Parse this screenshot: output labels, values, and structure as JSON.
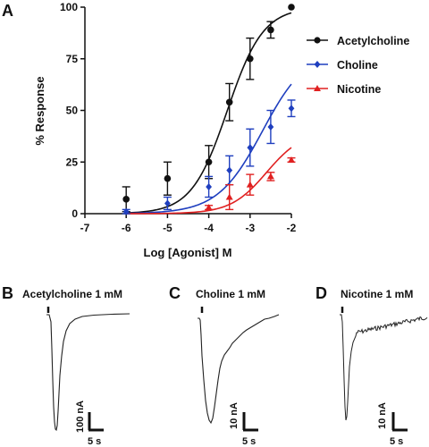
{
  "chart_data": [
    {
      "type": "line",
      "panel_label": "A",
      "xlabel": "Log [Agonist] M",
      "ylabel": "% Response",
      "xlim": [
        -7,
        -2
      ],
      "ylim": [
        0,
        100
      ],
      "x_ticks": [
        "-7",
        "-6",
        "-5",
        "-4",
        "-3",
        "-2"
      ],
      "y_ticks": [
        "0",
        "25",
        "50",
        "75",
        "100"
      ],
      "grid": false,
      "legend_position": "top-right",
      "series": [
        {
          "name": "Acetylcholine",
          "color": "#111111",
          "marker": "circle",
          "x": [
            -6,
            -5,
            -4,
            -3.5,
            -3,
            -2.5,
            -2
          ],
          "y": [
            7,
            17,
            25,
            54,
            75,
            89,
            100
          ],
          "error": [
            6,
            8,
            8,
            9,
            10,
            4,
            0
          ],
          "fit": {
            "bottom": 0,
            "top": 100,
            "log_ec50": -3.55,
            "hill": 1.0
          }
        },
        {
          "name": "Choline",
          "color": "#1f3fbf",
          "marker": "diamond",
          "x": [
            -6,
            -5,
            -4,
            -3.5,
            -3,
            -2.5,
            -2
          ],
          "y": [
            1,
            5,
            13,
            21,
            32,
            42,
            51
          ],
          "error": [
            1,
            3,
            5,
            7,
            9,
            8,
            4
          ],
          "fit": {
            "bottom": 0,
            "top": 80,
            "log_ec50": -2.7,
            "hill": 0.8
          }
        },
        {
          "name": "Nicotine",
          "color": "#e02020",
          "marker": "triangle",
          "x": [
            -4,
            -3.5,
            -3,
            -2.5,
            -2
          ],
          "y": [
            3,
            8,
            14,
            18,
            26
          ],
          "error": [
            1,
            6,
            5,
            2,
            1
          ],
          "fit": {
            "bottom": 0,
            "top": 40,
            "log_ec50": -2.6,
            "hill": 1.0
          }
        }
      ]
    },
    {
      "type": "line",
      "panel_label": "B",
      "title": "Acetylcholine 1 mM",
      "scale_bar": {
        "y_label": "100 nA",
        "x_label": "5 s"
      }
    },
    {
      "type": "line",
      "panel_label": "C",
      "title": "Choline 1 mM",
      "scale_bar": {
        "y_label": "10 nA",
        "x_label": "5 s"
      }
    },
    {
      "type": "line",
      "panel_label": "D",
      "title": "Nicotine 1 mM",
      "scale_bar": {
        "y_label": "10 nA",
        "x_label": "5 s"
      }
    }
  ]
}
